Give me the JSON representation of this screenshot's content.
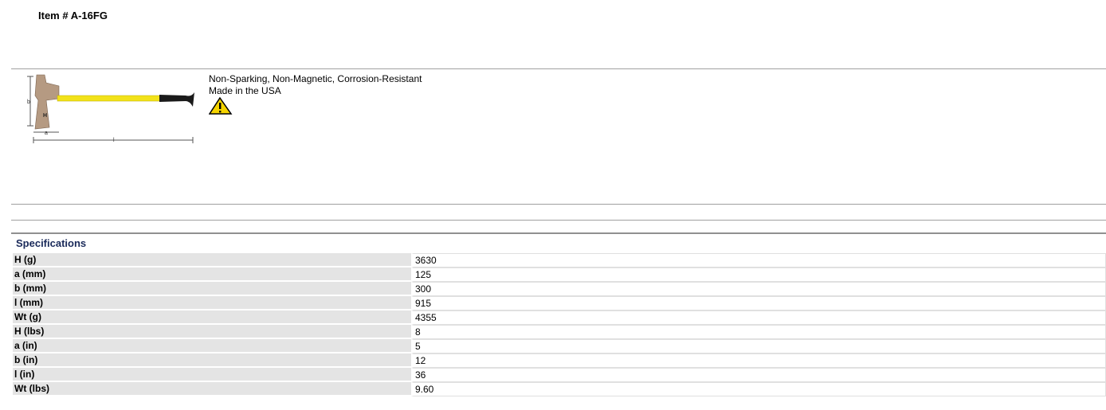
{
  "header": {
    "title": "Item # A-16FG"
  },
  "features": [
    "Non-Sparking, Non-Magnetic, Corrosion-Resistant",
    "Made in the USA"
  ],
  "specifications": {
    "title": "Specifications",
    "rows": [
      [
        "H (g)",
        "3630"
      ],
      [
        "a (mm)",
        "125"
      ],
      [
        "b (mm)",
        "300"
      ],
      [
        "l (mm)",
        "915"
      ],
      [
        "Wt (g)",
        "4355"
      ],
      [
        "H (lbs)",
        "8"
      ],
      [
        "a (in)",
        "5"
      ],
      [
        "b (in)",
        "12"
      ],
      [
        "l (in)",
        "36"
      ],
      [
        "Wt (lbs)",
        "9.60"
      ]
    ]
  }
}
